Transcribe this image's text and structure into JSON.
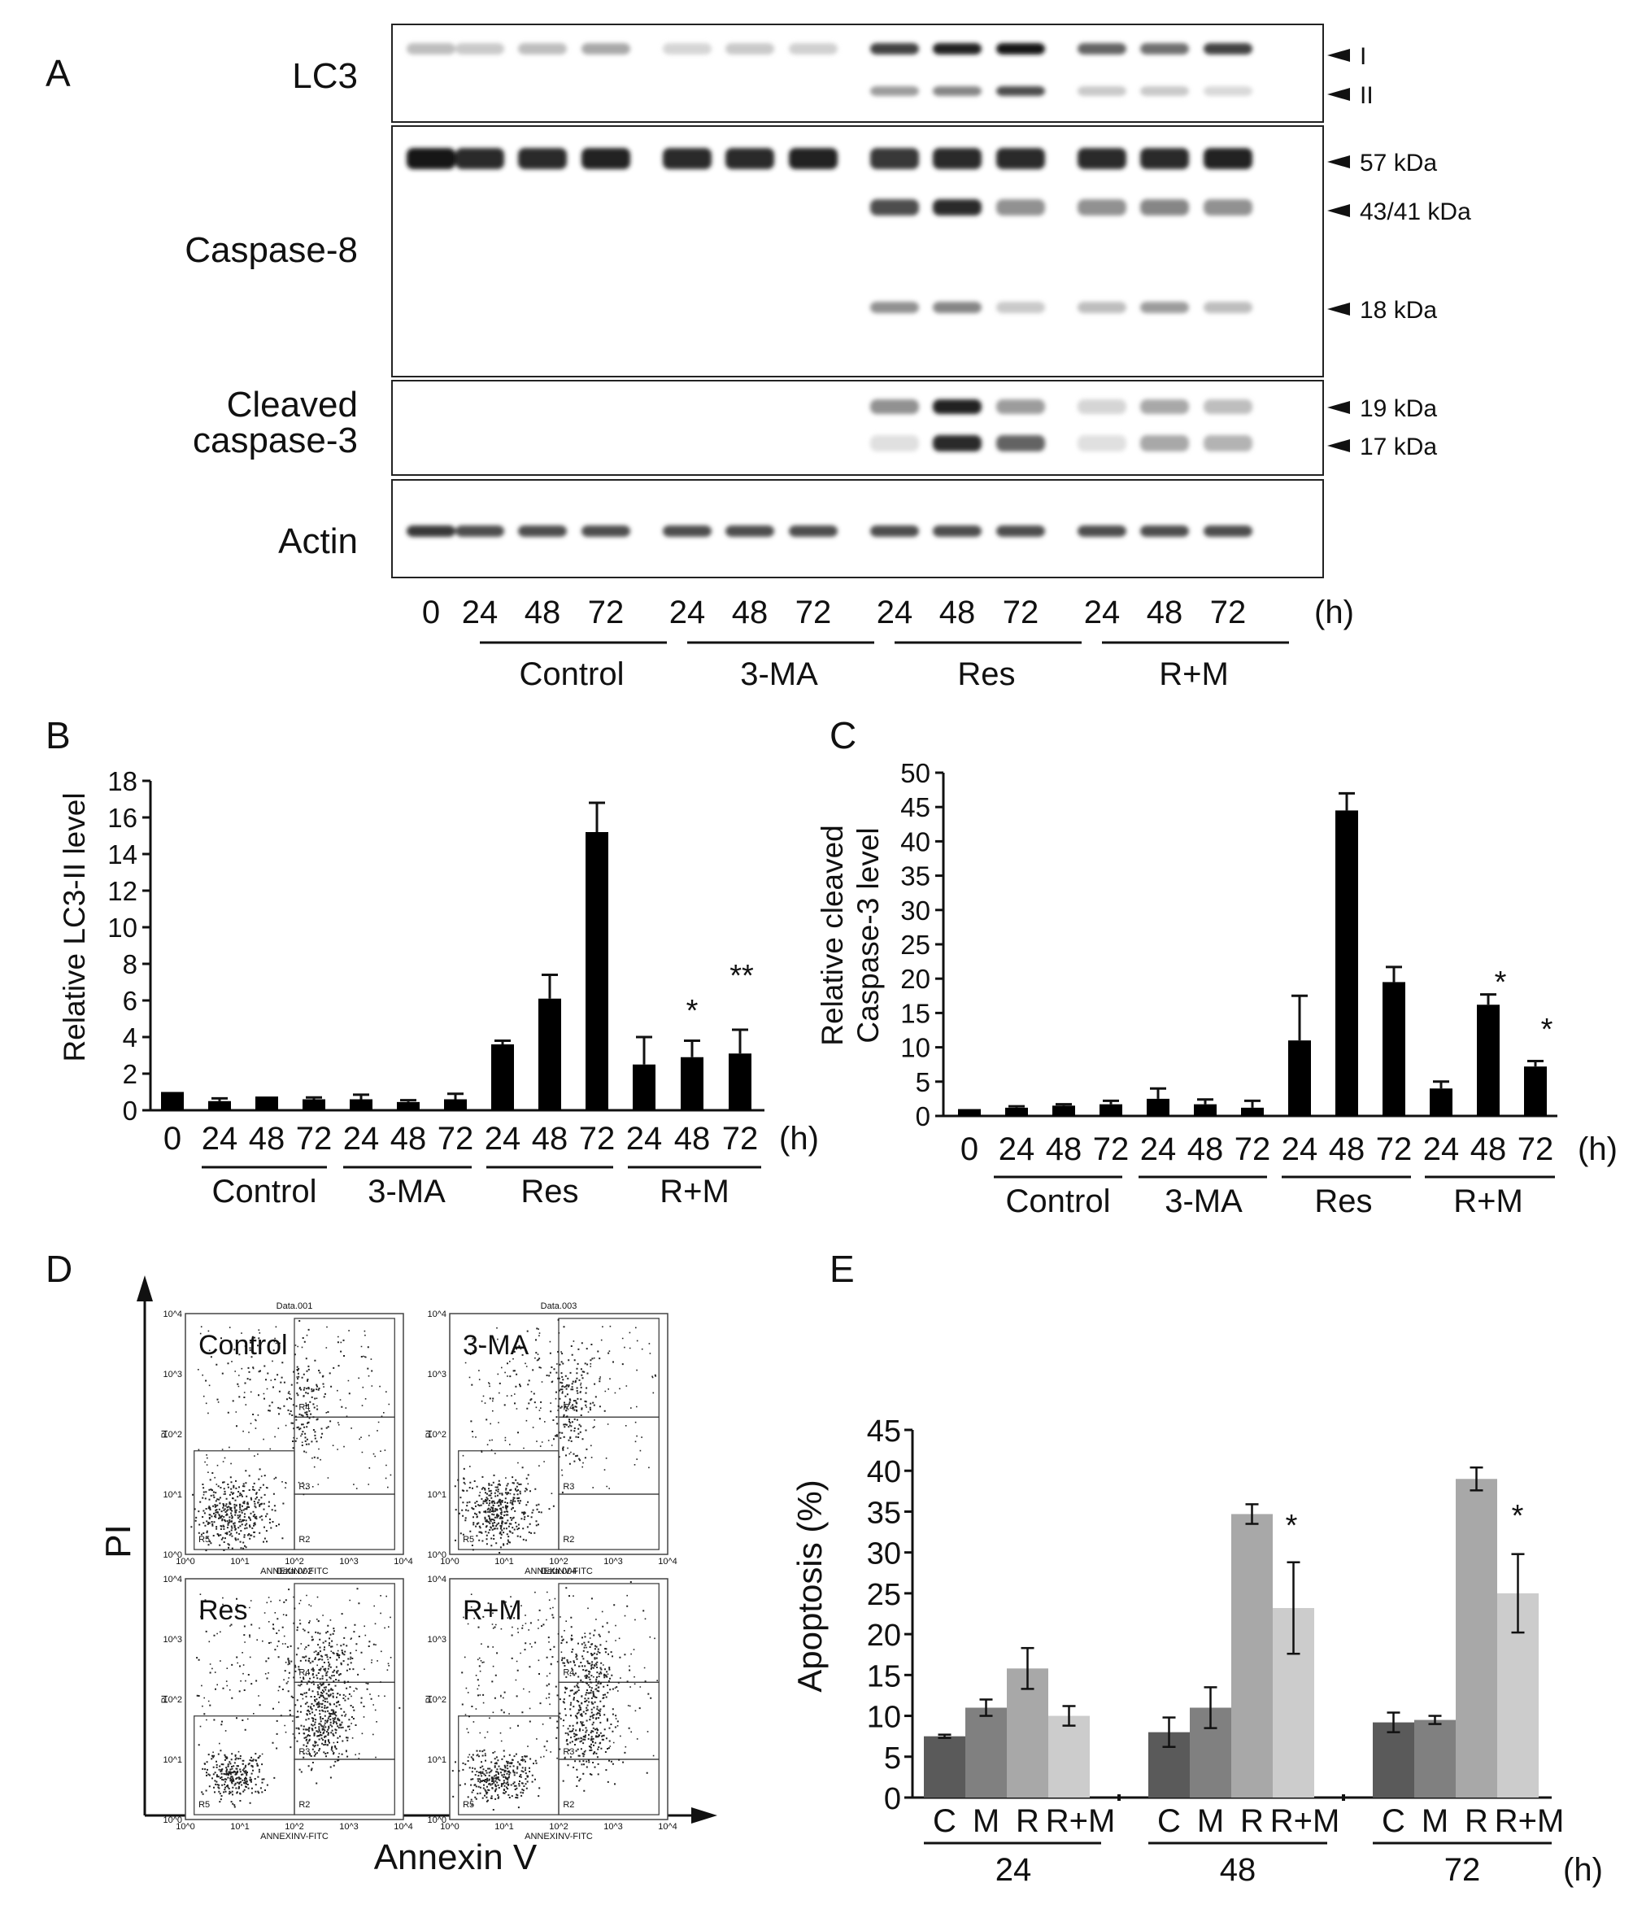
{
  "panel_a": {
    "panel_label": "A",
    "rows": [
      {
        "label": "LC3"
      },
      {
        "label": "Caspase-8"
      },
      {
        "label_lines": [
          "Cleaved",
          "caspase-3"
        ]
      },
      {
        "label": "Actin"
      }
    ],
    "markers": [
      "I",
      "II",
      "57 kDa",
      "43/41 kDa",
      "18 kDa",
      "19 kDa",
      "17 kDa"
    ],
    "lanes": [
      "0",
      "24",
      "48",
      "72",
      "24",
      "48",
      "72",
      "24",
      "48",
      "72",
      "24",
      "48",
      "72"
    ],
    "unit": "(h)",
    "groups": [
      "Control",
      "3-MA",
      "Res",
      "R+M"
    ],
    "band_intensity": {
      "LC3_I": [
        0.2,
        0.15,
        0.2,
        0.3,
        0.1,
        0.15,
        0.12,
        0.75,
        0.9,
        0.95,
        0.6,
        0.55,
        0.75
      ],
      "LC3_II": [
        0,
        0,
        0,
        0,
        0,
        0,
        0,
        0.35,
        0.45,
        0.7,
        0.15,
        0.15,
        0.08
      ],
      "casp8_57": [
        0.95,
        0.85,
        0.85,
        0.9,
        0.85,
        0.85,
        0.9,
        0.8,
        0.85,
        0.85,
        0.85,
        0.85,
        0.9
      ],
      "casp8_43": [
        0,
        0,
        0,
        0,
        0,
        0,
        0,
        0.7,
        0.85,
        0.4,
        0.4,
        0.45,
        0.4
      ],
      "casp8_18": [
        0,
        0,
        0,
        0,
        0,
        0,
        0,
        0.4,
        0.45,
        0.15,
        0.2,
        0.35,
        0.2
      ],
      "casp3_19": [
        0,
        0,
        0,
        0,
        0,
        0,
        0,
        0.4,
        0.9,
        0.35,
        0.1,
        0.3,
        0.2
      ],
      "casp3_17": [
        0,
        0,
        0,
        0,
        0,
        0,
        0,
        0.05,
        0.85,
        0.6,
        0.05,
        0.3,
        0.25
      ],
      "actin": [
        0.8,
        0.7,
        0.7,
        0.7,
        0.7,
        0.7,
        0.7,
        0.7,
        0.7,
        0.7,
        0.7,
        0.7,
        0.7
      ]
    }
  },
  "panel_b": {
    "panel_label": "B",
    "lanes": [
      "0",
      "24",
      "48",
      "72",
      "24",
      "48",
      "72",
      "24",
      "48",
      "72",
      "24",
      "48",
      "72"
    ],
    "unit": "(h)",
    "groups": [
      "Control",
      "3-MA",
      "Res",
      "R+M"
    ],
    "annotations": [
      "*",
      "**"
    ]
  },
  "panel_c": {
    "panel_label": "C",
    "lanes": [
      "0",
      "24",
      "48",
      "72",
      "24",
      "48",
      "72",
      "24",
      "48",
      "72",
      "24",
      "48",
      "72"
    ],
    "unit": "(h)",
    "groups": [
      "Control",
      "3-MA",
      "Res",
      "R+M"
    ],
    "annotations": [
      "*",
      "*"
    ]
  },
  "panel_d": {
    "panel_label": "D",
    "y_axis_label": "PI",
    "x_axis_label": "Annexin V",
    "plots": [
      {
        "label": "Control",
        "data_title": "Data.001"
      },
      {
        "label": "3-MA",
        "data_title": "Data.003"
      },
      {
        "label": "Res",
        "data_title": "Data.002"
      },
      {
        "label": "R+M",
        "data_title": "Data.004"
      }
    ],
    "plot_axis_x": "ANNEXINV-FITC",
    "plot_axis_y": "PI",
    "decades": [
      "10^0",
      "10^1",
      "10^2",
      "10^3",
      "10^4"
    ],
    "regions": [
      "R5",
      "R2",
      "R3",
      "R4"
    ]
  },
  "panel_e": {
    "panel_label": "E",
    "bar_labels": [
      "C",
      "M",
      "R",
      "R+M"
    ],
    "time_groups": [
      "24",
      "48",
      "72"
    ],
    "unit": "(h)",
    "annotations": [
      "*",
      "*"
    ]
  },
  "colors": {
    "bar_black": "#000000",
    "e_C": "#5a5a5a",
    "e_M": "#808080",
    "e_R": "#a8a8a8",
    "e_RM": "#cccccc"
  },
  "chart_data": [
    {
      "type": "bar",
      "panel": "B",
      "categories": [
        "0",
        "24",
        "48",
        "72",
        "24",
        "48",
        "72",
        "24",
        "48",
        "72",
        "24",
        "48",
        "72"
      ],
      "values": [
        1.0,
        0.5,
        0.75,
        0.6,
        0.6,
        0.45,
        0.6,
        3.6,
        6.1,
        15.2,
        2.5,
        2.9,
        3.1
      ],
      "errors": [
        0,
        0.15,
        0,
        0.1,
        0.25,
        0.1,
        0.3,
        0.2,
        1.3,
        1.6,
        1.5,
        0.9,
        1.3
      ],
      "ylabel": "Relative LC3-II level",
      "ylim": [
        0,
        18
      ],
      "yticks": [
        0,
        2,
        4,
        6,
        8,
        10,
        12,
        14,
        16,
        18
      ]
    },
    {
      "type": "bar",
      "panel": "C",
      "categories": [
        "0",
        "24",
        "48",
        "72",
        "24",
        "48",
        "72",
        "24",
        "48",
        "72",
        "24",
        "48",
        "72"
      ],
      "values": [
        1.0,
        1.2,
        1.5,
        1.7,
        2.5,
        1.7,
        1.2,
        11,
        44.5,
        19.5,
        4.0,
        16.2,
        7.2
      ],
      "errors": [
        0,
        0.2,
        0.2,
        0.5,
        1.5,
        0.7,
        1.0,
        6.5,
        2.5,
        2.2,
        1.0,
        1.5,
        0.8
      ],
      "ylabel_lines": [
        "Relative cleaved",
        "Caspase-3 level"
      ],
      "ylim": [
        0,
        50
      ],
      "yticks": [
        0,
        5,
        10,
        15,
        20,
        25,
        30,
        35,
        40,
        45,
        50
      ]
    },
    {
      "type": "bar",
      "panel": "E",
      "categories": [
        "24",
        "48",
        "72"
      ],
      "series": [
        {
          "name": "C",
          "values": [
            7.5,
            8.0,
            9.2
          ],
          "errors": [
            0.2,
            1.8,
            1.2
          ]
        },
        {
          "name": "M",
          "values": [
            11.0,
            11.0,
            9.5
          ],
          "errors": [
            1.0,
            2.5,
            0.5
          ]
        },
        {
          "name": "R",
          "values": [
            15.8,
            34.7,
            39.0
          ],
          "errors": [
            2.5,
            1.2,
            1.4
          ]
        },
        {
          "name": "R+M",
          "values": [
            10.0,
            23.2,
            25.0
          ],
          "errors": [
            1.2,
            5.6,
            4.8
          ]
        }
      ],
      "ylabel": "Apoptosis (%)",
      "ylim": [
        0,
        45
      ],
      "yticks": [
        0,
        5,
        10,
        15,
        20,
        25,
        30,
        35,
        40,
        45
      ]
    }
  ]
}
